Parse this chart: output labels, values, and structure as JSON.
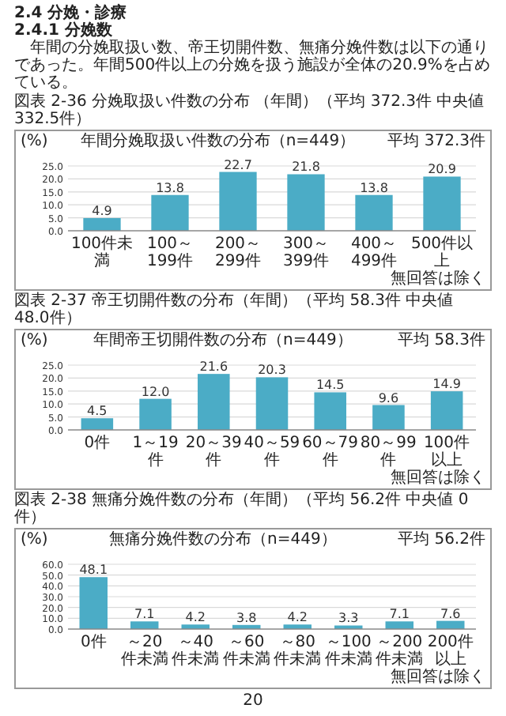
{
  "chart_data": [
    {
      "type": "bar",
      "title": "図表 2-36 分娩取扱い件数の分布 （年間）（平均 372.3件 中央値 332.5件）",
      "subtitle": "年間分娩取扱い件数の分布（n=449）",
      "ylabel": "(%)",
      "annotations": [
        "2.4 分娩・診療",
        "2.4.1 分娩数",
        "年間の分娩取扱い数、帝王切開件数、無痛分娩件数は以下の通りであった。年間500件以上の分娩を扱う施設が全体の20.9%を占めている。",
        "平均 372.3件",
        "無回答は除く"
      ],
      "categories": [
        "100件未満",
        "100～199件",
        "200～299件",
        "300～399件",
        "400～499件",
        "500件以上"
      ],
      "values": [
        4.9,
        13.8,
        22.7,
        21.8,
        13.8,
        20.9
      ],
      "color": "#4bacc6",
      "ylim": [
        0,
        25
      ],
      "yticks": [
        {
          "value": 0,
          "label": "0.0"
        },
        {
          "value": 5,
          "label": "5.0"
        },
        {
          "value": 10,
          "label": "10.0"
        },
        {
          "value": 15,
          "label": "15.0"
        },
        {
          "value": 20,
          "label": "20.0"
        },
        {
          "value": 25,
          "label": "25.0"
        }
      ],
      "grid": "y",
      "data_labels": true
    },
    {
      "type": "bar",
      "title": "図表 2-37 帝王切開件数の分布（年間）（平均 58.3件 中央値 48.0件）",
      "subtitle": "年間帝王切開件数の分布（n=449）",
      "ylabel": "(%)",
      "annotations": [
        "平均 58.3件",
        "無回答は除く"
      ],
      "categories": [
        "0件",
        "1～19件",
        "20～39件",
        "40～59件",
        "60～79件",
        "80～99件",
        "100件以上"
      ],
      "values": [
        4.5,
        12.0,
        21.6,
        20.3,
        14.5,
        9.6,
        14.9
      ],
      "value_labels": [
        "4.5",
        "12.0",
        "21.6",
        "20.3",
        "14.5",
        "9.6",
        "14.9"
      ],
      "color": "#4bacc6",
      "ylim": [
        0,
        25
      ],
      "yticks": [
        {
          "value": 0,
          "label": "0.0"
        },
        {
          "value": 5,
          "label": "5.0"
        },
        {
          "value": 10,
          "label": "10.0"
        },
        {
          "value": 15,
          "label": "15.0"
        },
        {
          "value": 20,
          "label": "20.0"
        },
        {
          "value": 25,
          "label": "25.0"
        }
      ],
      "grid": "y"
    },
    {
      "type": "bar",
      "title": "図表 2-38 無痛分娩件数の分布（年間）（平均 56.2件 中央値 0件）",
      "subtitle": "無痛分娩件数の分布（n=449）",
      "ylabel": "(%)",
      "annotations": [
        "平均 56.2件",
        "無回答は除く",
        "20"
      ],
      "categories": [
        "0件",
        "～20件未満",
        "～40件未満",
        "～60件未満",
        "～80件未満",
        "～100件未満",
        "～200件未満",
        "200件以上"
      ],
      "values": [
        48.1,
        7.1,
        4.2,
        3.8,
        4.2,
        3.3,
        7.1,
        7.6
      ],
      "color": "#4bacc6",
      "ylim": [
        0,
        60
      ],
      "yticks": [
        {
          "value": 0,
          "label": "0.0"
        },
        {
          "value": 10,
          "label": "10.0"
        },
        {
          "value": 20,
          "label": "20.0"
        },
        {
          "value": 30,
          "label": "30.0"
        },
        {
          "value": 40,
          "label": "40.0"
        },
        {
          "value": 50,
          "label": "50.0"
        },
        {
          "value": 60,
          "label": "60.0"
        }
      ],
      "grid": "y",
      "data_labels": true
    }
  ]
}
